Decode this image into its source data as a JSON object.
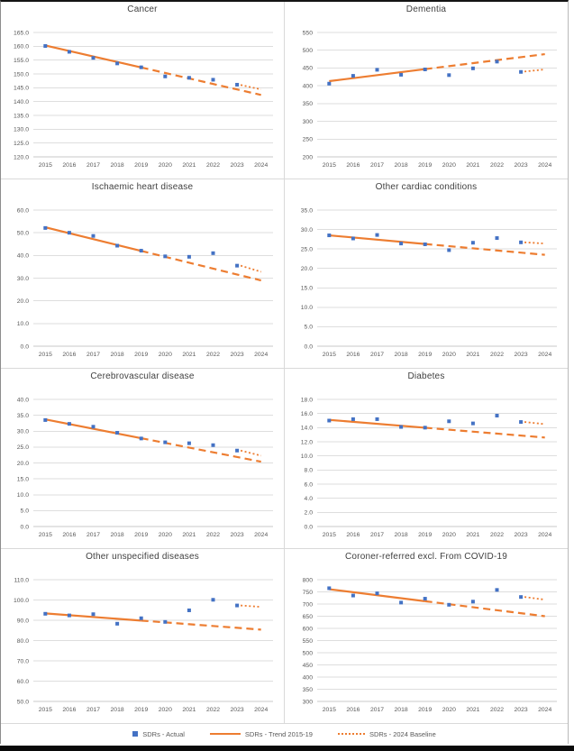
{
  "colors": {
    "actual": "#4472C4",
    "trend": "#ED7D31",
    "gridline": "#dedede",
    "axis": "#c9c9c9",
    "title_text": "#404040",
    "tick_text": "#595959"
  },
  "legend": {
    "items": [
      {
        "label": "SDRs - Actual",
        "marker": "blue-square"
      },
      {
        "label": "SDRs - Trend 2015-19",
        "marker": "orange-solid-line"
      },
      {
        "label": "SDRs - 2024 Baseline",
        "marker": "orange-dotted-line"
      }
    ]
  },
  "chart_data": [
    {
      "type": "line",
      "title": "Cancer",
      "x": [
        "2015",
        "2016",
        "2017",
        "2018",
        "2019",
        "2020",
        "2021",
        "2022",
        "2023",
        "2024"
      ],
      "ylim": [
        120,
        165
      ],
      "ystep": 5,
      "y_ticks": [
        "165.0",
        "160.0",
        "155.0",
        "150.0",
        "145.0",
        "140.0",
        "135.0",
        "130.0",
        "125.0",
        "120.0"
      ],
      "grid": true,
      "series": [
        {
          "name": "SDRs - Actual",
          "style": "points",
          "values": [
            160.1,
            158.0,
            155.8,
            153.8,
            152.4,
            149.1,
            148.6,
            147.9,
            146.1
          ]
        },
        {
          "name": "SDRs - Trend 2015-19",
          "style": "trend",
          "y2015": 160.3,
          "y2024": 142.4,
          "solid_until": "2019"
        },
        {
          "name": "SDRs - 2024 Baseline",
          "style": "baseline",
          "y2023": 146.0,
          "y2024": 144.4
        }
      ]
    },
    {
      "type": "line",
      "title": "Dementia",
      "x": [
        "2015",
        "2016",
        "2017",
        "2018",
        "2019",
        "2020",
        "2021",
        "2022",
        "2023",
        "2024"
      ],
      "ylim": [
        200,
        550
      ],
      "ystep": 50,
      "y_ticks": [
        "550",
        "500",
        "450",
        "400",
        "350",
        "300",
        "250",
        "200"
      ],
      "grid": true,
      "series": [
        {
          "name": "SDRs - Actual",
          "style": "points",
          "values": [
            406,
            428,
            445,
            431,
            446,
            430,
            449,
            468,
            439
          ]
        },
        {
          "name": "SDRs - Trend 2015-19",
          "style": "trend",
          "y2015": 413,
          "y2024": 489,
          "solid_until": "2019"
        },
        {
          "name": "SDRs - 2024 Baseline",
          "style": "baseline",
          "y2023": 440,
          "y2024": 446
        }
      ]
    },
    {
      "type": "line",
      "title": "Ischaemic heart disease",
      "x": [
        "2015",
        "2016",
        "2017",
        "2018",
        "2019",
        "2020",
        "2021",
        "2022",
        "2023",
        "2024"
      ],
      "ylim": [
        0,
        60
      ],
      "ystep": 10,
      "y_ticks": [
        "60.0",
        "50.0",
        "40.0",
        "30.0",
        "20.0",
        "10.0",
        "0.0"
      ],
      "grid": true,
      "series": [
        {
          "name": "SDRs - Actual",
          "style": "points",
          "values": [
            52.1,
            50.0,
            48.6,
            44.3,
            42.1,
            39.6,
            39.4,
            41.0,
            35.5
          ]
        },
        {
          "name": "SDRs - Trend 2015-19",
          "style": "trend",
          "y2015": 52.4,
          "y2024": 29.0,
          "solid_until": "2019"
        },
        {
          "name": "SDRs - 2024 Baseline",
          "style": "baseline",
          "y2023": 35.5,
          "y2024": 32.8
        }
      ]
    },
    {
      "type": "line",
      "title": "Other cardiac conditions",
      "x": [
        "2015",
        "2016",
        "2017",
        "2018",
        "2019",
        "2020",
        "2021",
        "2022",
        "2023",
        "2024"
      ],
      "ylim": [
        0,
        35
      ],
      "ystep": 5,
      "y_ticks": [
        "35.0",
        "30.0",
        "25.0",
        "20.0",
        "15.0",
        "10.0",
        "5.0",
        "0.0"
      ],
      "grid": true,
      "series": [
        {
          "name": "SDRs - Actual",
          "style": "points",
          "values": [
            28.5,
            27.7,
            28.6,
            26.4,
            26.2,
            24.7,
            26.6,
            27.8,
            26.7
          ]
        },
        {
          "name": "SDRs - Trend 2015-19",
          "style": "trend",
          "y2015": 28.5,
          "y2024": 23.5,
          "solid_until": "2019"
        },
        {
          "name": "SDRs - 2024 Baseline",
          "style": "baseline",
          "y2023": 26.7,
          "y2024": 26.4
        }
      ]
    },
    {
      "type": "line",
      "title": "Cerebrovascular disease",
      "x": [
        "2015",
        "2016",
        "2017",
        "2018",
        "2019",
        "2020",
        "2021",
        "2022",
        "2023",
        "2024"
      ],
      "ylim": [
        0,
        40
      ],
      "ystep": 5,
      "y_ticks": [
        "40.0",
        "35.0",
        "30.0",
        "25.0",
        "20.0",
        "15.0",
        "10.0",
        "5.0",
        "0.0"
      ],
      "grid": true,
      "series": [
        {
          "name": "SDRs - Actual",
          "style": "points",
          "values": [
            33.5,
            32.3,
            31.4,
            29.5,
            27.7,
            26.5,
            26.2,
            25.6,
            23.9
          ]
        },
        {
          "name": "SDRs - Trend 2015-19",
          "style": "trend",
          "y2015": 33.7,
          "y2024": 20.4,
          "solid_until": "2019"
        },
        {
          "name": "SDRs - 2024 Baseline",
          "style": "baseline",
          "y2023": 23.9,
          "y2024": 22.3
        }
      ]
    },
    {
      "type": "line",
      "title": "Diabetes",
      "x": [
        "2015",
        "2016",
        "2017",
        "2018",
        "2019",
        "2020",
        "2021",
        "2022",
        "2023",
        "2024"
      ],
      "ylim": [
        0,
        18
      ],
      "ystep": 2,
      "y_ticks": [
        "18.0",
        "16.0",
        "14.0",
        "12.0",
        "10.0",
        "8.0",
        "6.0",
        "4.0",
        "2.0",
        "0.0"
      ],
      "grid": true,
      "series": [
        {
          "name": "SDRs - Actual",
          "style": "points",
          "values": [
            15.0,
            15.2,
            15.2,
            14.1,
            14.0,
            14.9,
            14.6,
            15.7,
            14.8
          ]
        },
        {
          "name": "SDRs - Trend 2015-19",
          "style": "trend",
          "y2015": 15.1,
          "y2024": 12.6,
          "solid_until": "2019"
        },
        {
          "name": "SDRs - 2024 Baseline",
          "style": "baseline",
          "y2023": 14.8,
          "y2024": 14.5
        }
      ]
    },
    {
      "type": "line",
      "title": "Other unspecified diseases",
      "x": [
        "2015",
        "2016",
        "2017",
        "2018",
        "2019",
        "2020",
        "2021",
        "2022",
        "2023",
        "2024"
      ],
      "ylim": [
        50,
        110
      ],
      "ystep": 10,
      "y_ticks": [
        "110.0",
        "100.0",
        "90.0",
        "80.0",
        "70.0",
        "60.0",
        "50.0"
      ],
      "grid": true,
      "series": [
        {
          "name": "SDRs - Actual",
          "style": "points",
          "values": [
            93.2,
            92.4,
            93.0,
            88.3,
            91.0,
            89.2,
            94.9,
            100.1,
            97.3
          ]
        },
        {
          "name": "SDRs - Trend 2015-19",
          "style": "trend",
          "y2015": 93.4,
          "y2024": 85.4,
          "solid_until": "2019"
        },
        {
          "name": "SDRs - 2024 Baseline",
          "style": "baseline",
          "y2023": 97.3,
          "y2024": 96.6
        }
      ]
    },
    {
      "type": "line",
      "title": "Coroner-referred excl. From COVID-19",
      "x": [
        "2015",
        "2016",
        "2017",
        "2018",
        "2019",
        "2020",
        "2021",
        "2022",
        "2023",
        "2024"
      ],
      "ylim": [
        300,
        800
      ],
      "ystep": 50,
      "y_ticks": [
        "800",
        "750",
        "700",
        "650",
        "600",
        "550",
        "500",
        "450",
        "400",
        "350",
        "300"
      ],
      "grid": true,
      "series": [
        {
          "name": "SDRs - Actual",
          "style": "points",
          "values": [
            765,
            735,
            744,
            706,
            722,
            697,
            710,
            758,
            729
          ]
        },
        {
          "name": "SDRs - Trend 2015-19",
          "style": "trend",
          "y2015": 761,
          "y2024": 650,
          "solid_until": "2019"
        },
        {
          "name": "SDRs - 2024 Baseline",
          "style": "baseline",
          "y2023": 729,
          "y2024": 718
        }
      ]
    }
  ]
}
